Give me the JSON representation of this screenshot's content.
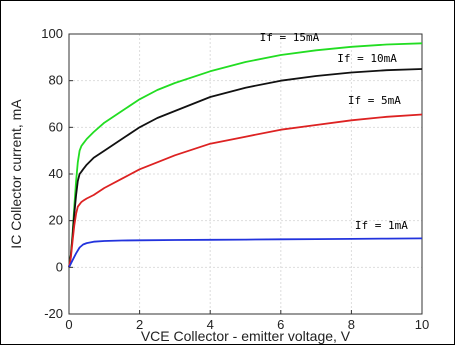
{
  "chart_data": {
    "type": "line",
    "title": "",
    "xlabel": "VCE Collector - emitter voltage, V",
    "ylabel": "IC Collector current, mA",
    "xlim": [
      0,
      10
    ],
    "ylim": [
      -20,
      100
    ],
    "x_ticks": [
      0,
      2,
      4,
      6,
      8,
      10
    ],
    "y_ticks": [
      -20,
      0,
      20,
      40,
      60,
      80,
      100
    ],
    "grid": true,
    "legend": "none",
    "series": [
      {
        "name": "If = 15mA",
        "color": "#22dd22",
        "x": [
          0,
          0.05,
          0.1,
          0.15,
          0.2,
          0.25,
          0.3,
          0.35,
          0.4,
          0.5,
          0.7,
          1,
          1.5,
          2,
          2.5,
          3,
          4,
          5,
          6,
          7,
          8,
          9,
          10
        ],
        "y": [
          0,
          5,
          14,
          26,
          37,
          45,
          50,
          52,
          53,
          55,
          58,
          62,
          67,
          72,
          76,
          79,
          84,
          88,
          91,
          93,
          94.5,
          95.5,
          96
        ]
      },
      {
        "name": "If = 10mA",
        "color": "#111111",
        "x": [
          0,
          0.05,
          0.1,
          0.15,
          0.2,
          0.25,
          0.3,
          0.35,
          0.4,
          0.5,
          0.7,
          1,
          1.5,
          2,
          2.5,
          3,
          4,
          5,
          6,
          7,
          8,
          9,
          10
        ],
        "y": [
          0,
          5,
          13,
          23,
          31,
          37,
          40,
          41,
          42,
          44,
          47,
          50,
          55,
          60,
          64,
          67,
          73,
          77,
          80,
          82,
          83.5,
          84.5,
          85
        ]
      },
      {
        "name": "If = 5mA",
        "color": "#dd2222",
        "x": [
          0,
          0.05,
          0.1,
          0.15,
          0.2,
          0.25,
          0.3,
          0.35,
          0.4,
          0.5,
          0.7,
          1,
          1.5,
          2,
          2.5,
          3,
          4,
          5,
          6,
          7,
          8,
          9,
          10
        ],
        "y": [
          0,
          4,
          11,
          18,
          23,
          26,
          27,
          28,
          28.5,
          29.5,
          31,
          34,
          38,
          42,
          45,
          48,
          53,
          56,
          59,
          61,
          63,
          64.5,
          65.5
        ]
      },
      {
        "name": "If = 1mA",
        "color": "#2233dd",
        "x": [
          0,
          0.1,
          0.2,
          0.3,
          0.4,
          0.5,
          0.7,
          1,
          1.5,
          2,
          3,
          4,
          5,
          6,
          7,
          8,
          9,
          10
        ],
        "y": [
          0,
          3,
          6,
          8.5,
          9.8,
          10.4,
          11,
          11.3,
          11.5,
          11.6,
          11.7,
          11.8,
          11.9,
          12,
          12.1,
          12.2,
          12.3,
          12.4
        ]
      }
    ],
    "annotations": [
      {
        "text": "If = 15mA",
        "x": 5.4,
        "y": 97
      },
      {
        "text": "If = 10mA",
        "x": 7.6,
        "y": 88
      },
      {
        "text": "If = 5mA",
        "x": 7.9,
        "y": 70
      },
      {
        "text": "If = 1mA",
        "x": 8.1,
        "y": 16.5
      }
    ]
  }
}
